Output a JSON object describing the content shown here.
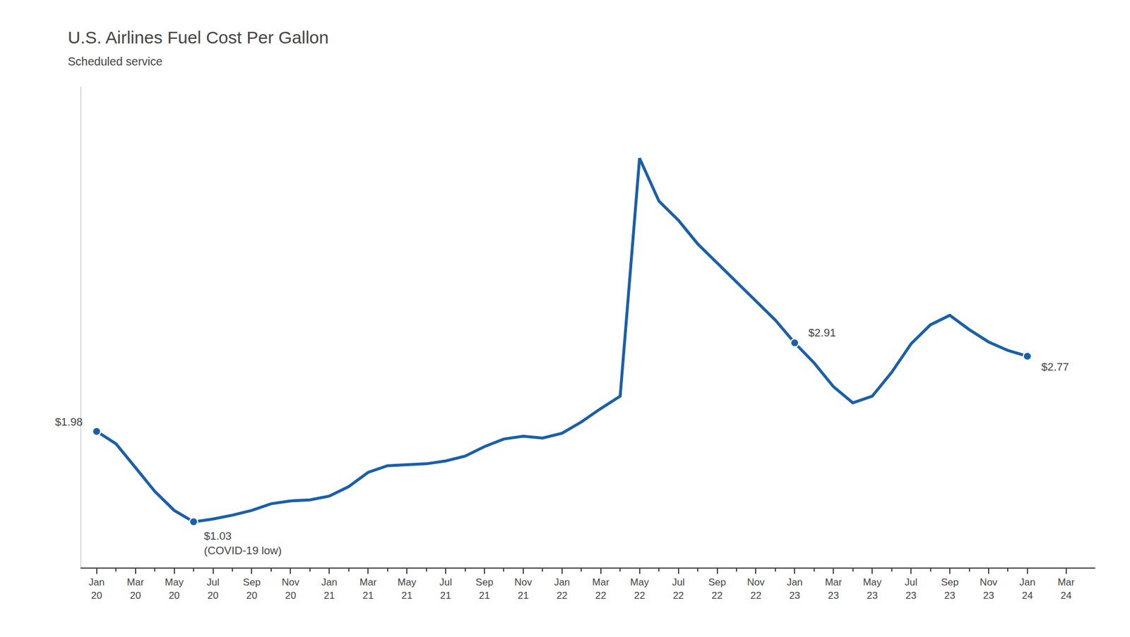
{
  "chart_data": {
    "type": "line",
    "title": "U.S. Airlines Fuel Cost Per Gallon",
    "subtitle": "Scheduled service",
    "color": "#1a5fa8",
    "categories": [
      "Jan\n20",
      null,
      "Mar\n20",
      null,
      "May\n20",
      null,
      "Jul\n20",
      null,
      "Sep\n20",
      null,
      "Nov\n20",
      null,
      "Jan\n21",
      null,
      "Mar\n21",
      null,
      "May\n21",
      null,
      "Jul\n21",
      null,
      "Sep\n21",
      null,
      "Nov\n21",
      null,
      "Jan\n22",
      null,
      "Mar\n22",
      null,
      "May\n22",
      null,
      "Jul\n22",
      null,
      "Sep\n22",
      null,
      "Nov\n22",
      null,
      "Jan\n23",
      null,
      "Mar\n23",
      null,
      "May\n23",
      null,
      "Jul\n23",
      null,
      "Sep\n23",
      null,
      "Nov\n23",
      null,
      "Jan\n24",
      null,
      "Mar\n24"
    ],
    "values": [
      1.98,
      1.85,
      1.6,
      1.35,
      1.15,
      1.03,
      1.06,
      1.1,
      1.15,
      1.22,
      1.25,
      1.26,
      1.3,
      1.4,
      1.55,
      1.62,
      1.63,
      1.64,
      1.67,
      1.72,
      1.82,
      1.9,
      1.93,
      1.91,
      1.96,
      2.08,
      2.22,
      2.35,
      4.85,
      4.4,
      4.2,
      3.95,
      3.75,
      3.55,
      3.35,
      3.15,
      2.91,
      2.7,
      2.45,
      2.28,
      2.35,
      2.6,
      2.9,
      3.1,
      3.2,
      3.05,
      2.92,
      2.83,
      2.77,
      null,
      null
    ],
    "annotations": [
      {
        "x": 0,
        "y": 1.98,
        "text": "$1.98"
      },
      {
        "x": 5,
        "y": 1.03,
        "text": "$1.03\n(COVID-19 low)"
      },
      {
        "x": 36,
        "y": 2.91,
        "text": "$2.91"
      },
      {
        "x": 48,
        "y": 2.77,
        "text": "$2.77"
      }
    ],
    "xlim": [
      -0.8,
      51.5
    ],
    "ylim": [
      0.55,
      5.6
    ],
    "grid": false,
    "tick_labels": "x"
  }
}
